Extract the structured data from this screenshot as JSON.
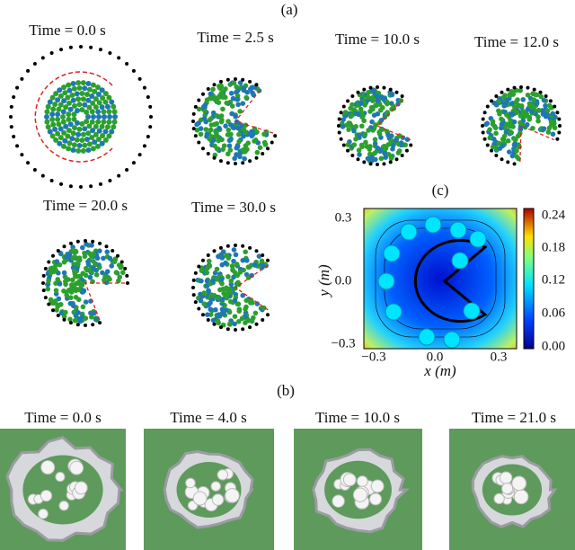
{
  "panel_a": {
    "label": "(a)",
    "snapshots": [
      {
        "time": "Time = 0.0 s"
      },
      {
        "time": "Time = 2.5 s"
      },
      {
        "time": "Time = 10.0 s"
      },
      {
        "time": "Time = 12.0 s"
      },
      {
        "time": "Time = 20.0 s"
      },
      {
        "time": "Time = 30.0 s"
      }
    ]
  },
  "panel_c": {
    "label": "(c)",
    "x_label": "x (m)",
    "y_label": "y (m)",
    "x_ticks": [
      "−0.3",
      "0.0",
      "0.3"
    ],
    "y_ticks": [
      "0.3",
      "0.0",
      "−0.3"
    ],
    "colorbar_ticks": [
      "0.24",
      "0.18",
      "0.12",
      "0.06",
      "0.00"
    ]
  },
  "panel_b": {
    "label": "(b)",
    "photos": [
      {
        "time": "Time = 0.0 s"
      },
      {
        "time": "Time = 4.0 s"
      },
      {
        "time": "Time = 10.0 s"
      },
      {
        "time": "Time = 21.0 s"
      }
    ]
  }
}
